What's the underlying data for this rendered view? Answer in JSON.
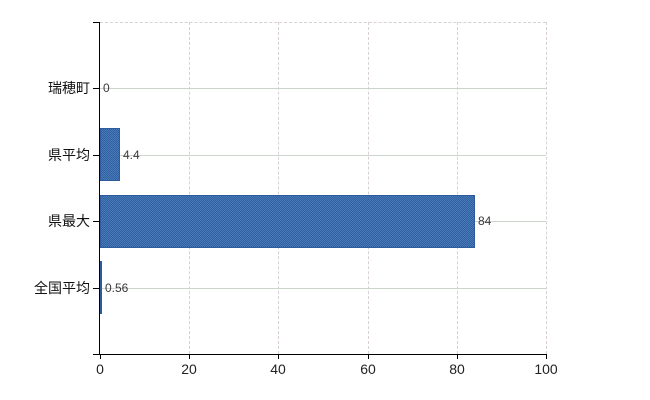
{
  "chart_data": {
    "type": "bar",
    "orientation": "horizontal",
    "categories": [
      "瑞穂町",
      "県平均",
      "県最大",
      "全国平均"
    ],
    "values": [
      0,
      4.4,
      84,
      0.56
    ],
    "value_labels": [
      "0",
      "4.4",
      "84",
      "0.56"
    ],
    "x_ticks": [
      0,
      20,
      40,
      60,
      80,
      100
    ],
    "x_tick_labels": [
      "0",
      "20",
      "40",
      "60",
      "80",
      "100"
    ],
    "xlim": [
      0,
      100
    ],
    "title": "",
    "xlabel": "",
    "ylabel": "",
    "grid": true,
    "legend": false,
    "colors": {
      "bar_fill": "#3d6fa9",
      "bar_dither_light": "#4a7ab9",
      "bar_dither_dark": "#2e5f9e",
      "bar_border": "#2c5c9c",
      "gridline_solid": "#ccd4cc",
      "gridline_dashed": "#d8d0d6",
      "axis": "#000000",
      "label_text": "#111111",
      "value_text": "#3a3a3a",
      "background": "#ffffff"
    }
  }
}
